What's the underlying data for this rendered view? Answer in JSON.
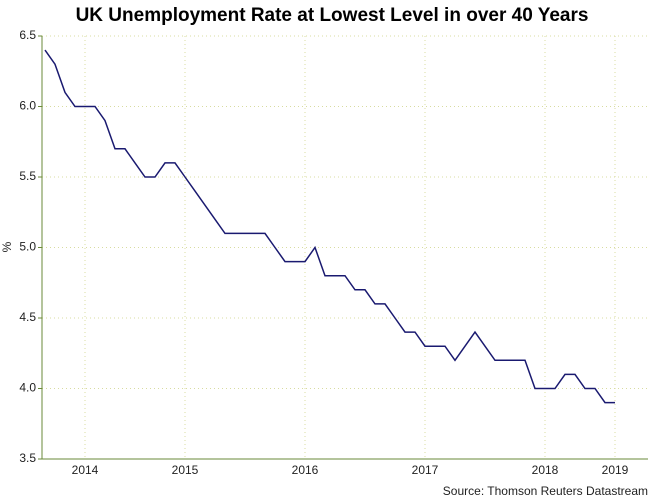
{
  "chart_data": {
    "type": "line",
    "title": "UK Unemployment Rate at Lowest Level in over 40 Years",
    "y_label": "%",
    "source": "Source: Thomson Reuters Datastream",
    "categories": [
      null,
      null,
      null,
      null,
      "2014",
      null,
      null,
      null,
      null,
      null,
      null,
      null,
      null,
      null,
      "2015",
      null,
      null,
      null,
      null,
      null,
      null,
      null,
      null,
      null,
      null,
      null,
      "2016",
      null,
      null,
      null,
      null,
      null,
      null,
      null,
      null,
      null,
      null,
      null,
      "2017",
      null,
      null,
      null,
      null,
      null,
      null,
      null,
      null,
      null,
      null,
      null,
      "2018",
      null,
      null,
      null,
      null,
      null,
      null,
      "2019"
    ],
    "series": [
      {
        "name": "UK unemployment rate",
        "color": "#1a1a70",
        "values": [
          6.4,
          6.3,
          6.1,
          6.0,
          6.0,
          6.0,
          5.9,
          5.7,
          5.7,
          5.6,
          5.5,
          5.5,
          5.6,
          5.6,
          5.5,
          5.4,
          5.3,
          5.2,
          5.1,
          5.1,
          5.1,
          5.1,
          5.1,
          5.0,
          4.9,
          4.9,
          4.9,
          5.0,
          4.8,
          4.8,
          4.8,
          4.7,
          4.7,
          4.6,
          4.6,
          4.5,
          4.4,
          4.4,
          4.3,
          4.3,
          4.3,
          4.2,
          4.3,
          4.4,
          4.3,
          4.2,
          4.2,
          4.2,
          4.2,
          4.0,
          4.0,
          4.0,
          4.1,
          4.1,
          4.0,
          4.0,
          3.9,
          3.9
        ]
      }
    ],
    "ylim": [
      3.5,
      6.5
    ],
    "yticks": [
      3.5,
      {
        "value": 4,
        "label": "4.0"
      },
      4.5,
      {
        "value": 5,
        "label": "5.0"
      },
      5.5,
      {
        "value": 6,
        "label": "6.0"
      },
      6.5
    ],
    "grid": true
  }
}
